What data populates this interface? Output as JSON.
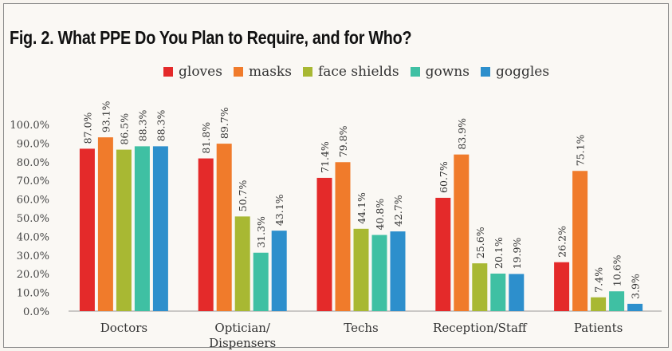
{
  "title": "Fig. 2. What PPE Do You Plan to Require, and for Who?",
  "chart_data": {
    "type": "bar",
    "categories": [
      "Doctors",
      "Optician/\nDispensers",
      "Techs",
      "Reception/Staff",
      "Patients"
    ],
    "series": [
      {
        "name": "gloves",
        "color": "#e42a2a",
        "values": [
          87.0,
          81.8,
          71.4,
          60.7,
          26.2
        ],
        "labels": [
          "87.0%",
          "81.8%",
          "71.4%",
          "60.7%",
          "26.2%"
        ]
      },
      {
        "name": "masks",
        "color": "#f07b2b",
        "values": [
          93.1,
          89.7,
          79.8,
          83.9,
          75.1
        ],
        "labels": [
          "93.1%",
          "89.7%",
          "79.8%",
          "83.9%",
          "75.1%"
        ]
      },
      {
        "name": "face shields",
        "color": "#a8b833",
        "values": [
          86.5,
          50.7,
          44.1,
          25.6,
          7.4
        ],
        "labels": [
          "86.5%",
          "50.7%",
          "44.1%",
          "25.6%",
          "7.4%"
        ]
      },
      {
        "name": "gowns",
        "color": "#3fc0a3",
        "values": [
          88.3,
          31.3,
          40.8,
          20.1,
          10.6
        ],
        "labels": [
          "88.3%",
          "31.3%",
          "40.8%",
          "20.1%",
          "10.6%"
        ]
      },
      {
        "name": "goggles",
        "color": "#2d8fcc",
        "values": [
          88.3,
          43.1,
          42.7,
          19.9,
          3.9
        ],
        "labels": [
          "88.3%",
          "43.1%",
          "42.7%",
          "19.9%",
          "3.9%"
        ]
      }
    ],
    "yticks": [
      "0.0%",
      "10.0%",
      "20.0%",
      "30.0%",
      "40.0%",
      "50.0%",
      "60.0%",
      "70.0%",
      "80.0%",
      "90.0%",
      "100.0%"
    ],
    "ylim": [
      0,
      100
    ],
    "legend": "top"
  }
}
